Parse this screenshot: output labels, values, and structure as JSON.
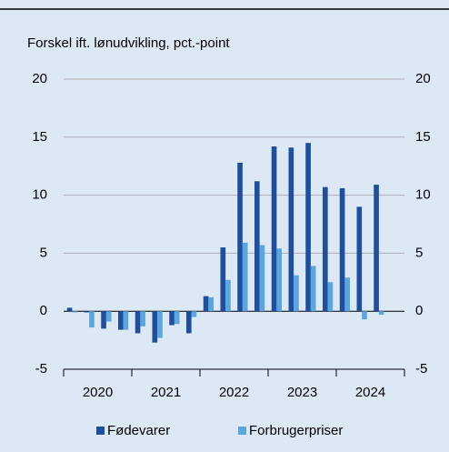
{
  "chart_data": {
    "type": "bar",
    "subtitle": "Forskel ift. lønudvikling, pct.-point",
    "categories": [
      "2020",
      null,
      null,
      null,
      "2021",
      null,
      null,
      null,
      "2022",
      null,
      null,
      null,
      "2023",
      null,
      null,
      null,
      "2024",
      null,
      null,
      null
    ],
    "series": [
      {
        "name": "Fødevarer",
        "color": "#1f4e9e",
        "values": [
          0.3,
          -0.1,
          -1.5,
          -1.6,
          -1.9,
          -2.7,
          -1.2,
          -1.9,
          1.3,
          5.5,
          12.8,
          11.2,
          14.2,
          14.1,
          14.5,
          10.7,
          10.6,
          9.0,
          10.9,
          null
        ]
      },
      {
        "name": "Forbrugerpriser",
        "color": "#5ca6de",
        "values": [
          -0.1,
          -1.4,
          -0.9,
          -1.6,
          -1.3,
          -2.3,
          -1.1,
          -0.5,
          1.2,
          2.7,
          5.9,
          5.7,
          5.4,
          3.1,
          3.9,
          2.5,
          2.9,
          -0.7,
          -0.3,
          null
        ]
      }
    ],
    "ylim": [
      -5,
      20
    ],
    "yticks": [
      -5,
      0,
      5,
      10,
      15,
      20
    ],
    "grid": true
  }
}
